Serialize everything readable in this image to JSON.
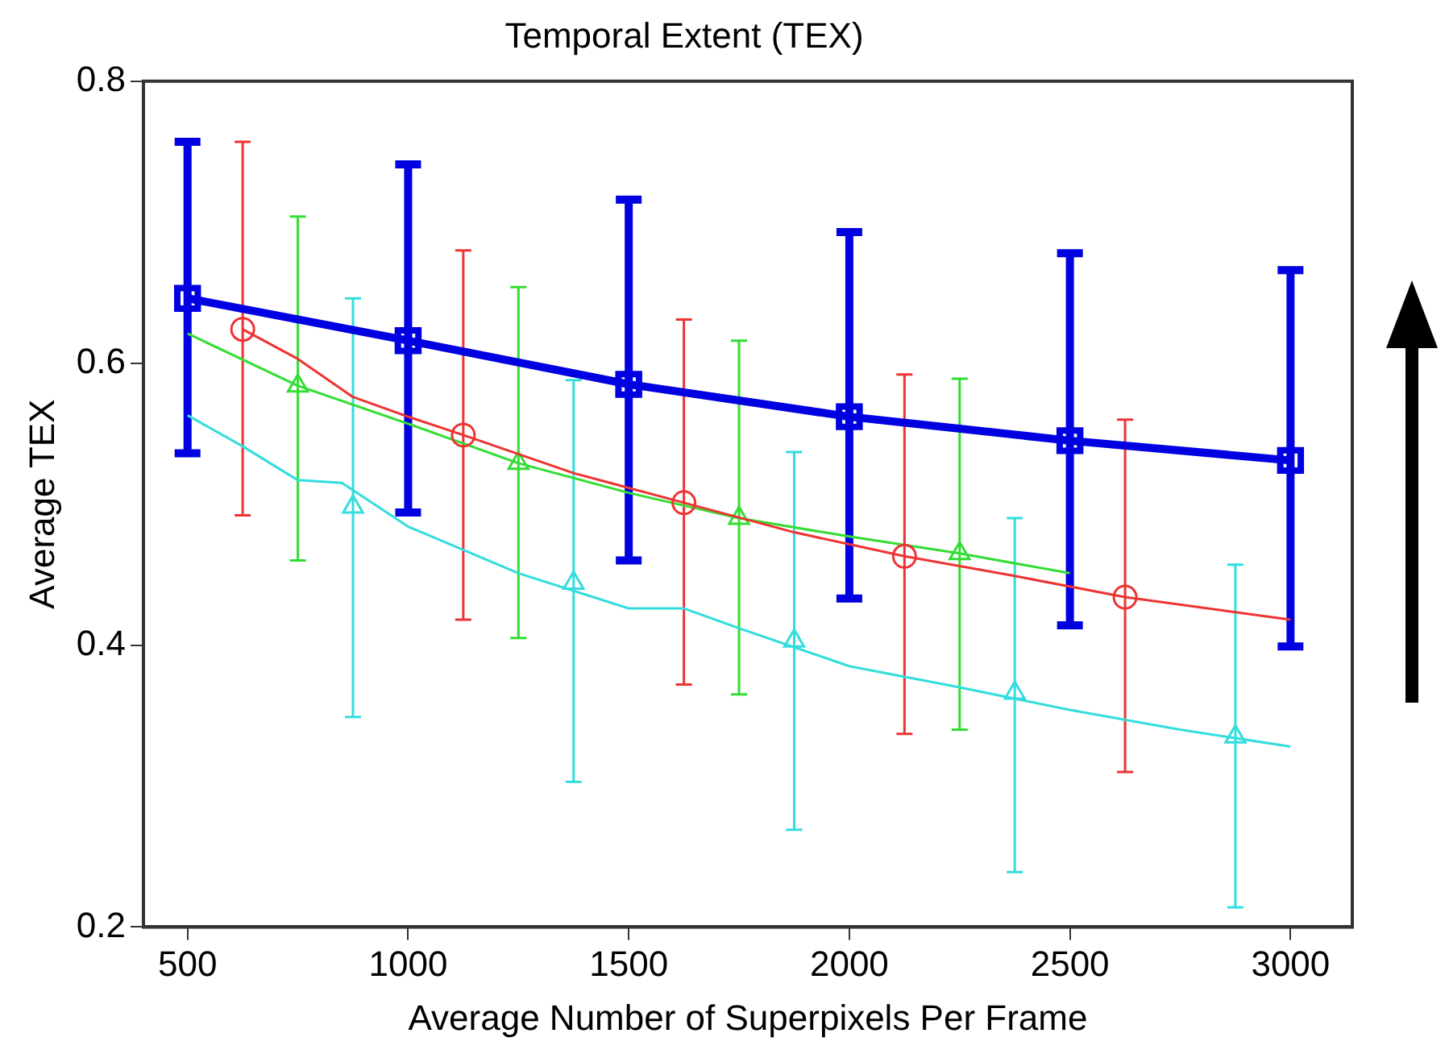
{
  "chart_data": {
    "type": "line",
    "title": "Temporal Extent (TEX)",
    "xlabel": "Average Number of Superpixels Per Frame",
    "ylabel": "Average TEX",
    "xlim": [
      400,
      3140
    ],
    "xticks": [
      500,
      1000,
      1500,
      2000,
      2500,
      3000
    ],
    "ylim": [
      0.2,
      0.8
    ],
    "yticks": [
      0.2,
      0.4,
      0.6,
      0.8
    ],
    "grid": false,
    "legend": false,
    "series": [
      {
        "color": "#0000e0",
        "marker": "square",
        "x": [
          500,
          1000,
          1500,
          2000,
          2500,
          3000
        ],
        "values": [
          0.646,
          0.616,
          0.585,
          0.562,
          0.545,
          0.531
        ],
        "errors": [
          [
            0.536,
            0.757
          ],
          [
            0.494,
            0.741
          ],
          [
            0.46,
            0.716
          ],
          [
            0.433,
            0.693
          ],
          [
            0.414,
            0.678
          ],
          [
            0.399,
            0.666
          ]
        ]
      },
      {
        "color": "#ee3333",
        "marker": "none",
        "x": [
          625,
          750,
          875,
          1000,
          1125,
          1375,
          1625,
          1875,
          2125,
          2375,
          2625,
          3000
        ],
        "values": [
          0.624,
          0.603,
          0.576,
          0.562,
          0.549,
          0.522,
          0.501,
          0.48,
          0.463,
          0.449,
          0.434,
          0.418
        ]
      },
      {
        "type": "scatter",
        "color": "#ee3333",
        "marker": "circle",
        "x": [
          625,
          1125,
          1625,
          2125,
          2625
        ],
        "values": [
          0.624,
          0.549,
          0.501,
          0.463,
          0.434
        ],
        "errors": [
          [
            0.492,
            0.757
          ],
          [
            0.418,
            0.68
          ],
          [
            0.372,
            0.631
          ],
          [
            0.337,
            0.592
          ],
          [
            0.31,
            0.56
          ]
        ]
      },
      {
        "color": "#33dd33",
        "marker": "none",
        "x": [
          500,
          750,
          1000,
          1250,
          1500,
          1750,
          2000,
          2250,
          2500
        ],
        "values": [
          0.621,
          0.584,
          0.557,
          0.529,
          0.508,
          0.49,
          0.477,
          0.465,
          0.451
        ]
      },
      {
        "type": "scatter",
        "color": "#33dd33",
        "marker": "triangle",
        "x": [
          750,
          1250,
          1750,
          2250
        ],
        "values": [
          0.584,
          0.529,
          0.49,
          0.465
        ],
        "errors": [
          [
            0.46,
            0.704
          ],
          [
            0.405,
            0.654
          ],
          [
            0.365,
            0.616
          ],
          [
            0.34,
            0.589
          ]
        ]
      },
      {
        "color": "#33dddd",
        "marker": "none",
        "x": [
          500,
          625,
          750,
          850,
          1000,
          1250,
          1500,
          1625,
          1750,
          2000,
          2250,
          2500,
          2750,
          3000
        ],
        "values": [
          0.563,
          0.541,
          0.517,
          0.515,
          0.484,
          0.451,
          0.426,
          0.426,
          0.412,
          0.385,
          0.37,
          0.354,
          0.34,
          0.328
        ]
      },
      {
        "type": "scatter",
        "color": "#33dddd",
        "marker": "triangle",
        "x": [
          875,
          1375,
          1875,
          2375,
          2875
        ],
        "values": [
          0.498,
          0.444,
          0.403,
          0.366,
          0.335
        ],
        "errors": [
          [
            0.349,
            0.646
          ],
          [
            0.303,
            0.588
          ],
          [
            0.269,
            0.537
          ],
          [
            0.239,
            0.49
          ],
          [
            0.214,
            0.457
          ]
        ]
      }
    ]
  }
}
